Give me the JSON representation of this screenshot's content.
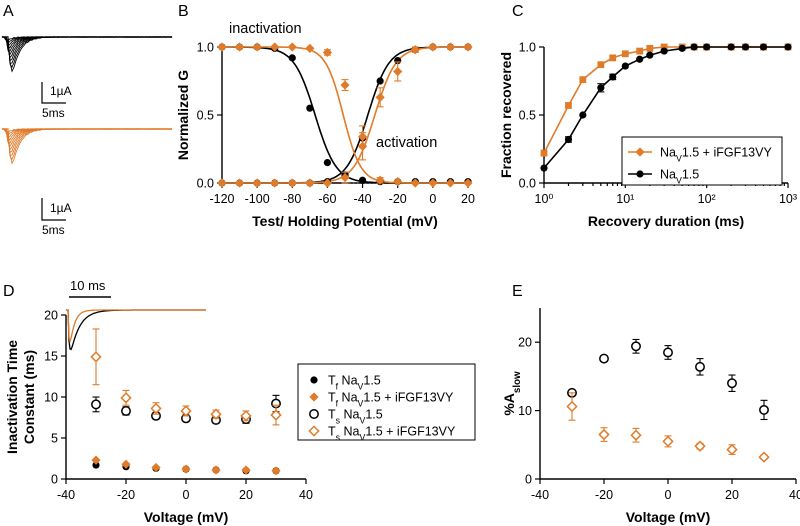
{
  "panel_labels": [
    "A",
    "B",
    "C",
    "D",
    "E"
  ],
  "colors": {
    "wt": "#000000",
    "ifgf": "#E07B2A"
  },
  "panel_a": {
    "scale_current": "1µA",
    "scale_time": "5ms"
  },
  "panel_d_inset": {
    "scale_time": "10 ms"
  },
  "chart_data": [
    {
      "panel": "B",
      "type": "scatter",
      "xlabel": "Test/ Holding Potential (mV)",
      "ylabel": "Normalized G",
      "xlim": [
        -120,
        20
      ],
      "ylim": [
        0,
        1.0
      ],
      "xticks": [
        "-120",
        "-100",
        "-80",
        "-60",
        "-40",
        "-20",
        "0",
        "20"
      ],
      "yticks": [
        "0.0",
        "0.5",
        "1.0"
      ],
      "annotations": [
        "inactivation",
        "activation"
      ],
      "series": [
        {
          "color_key": "wt",
          "curve": "inactivation",
          "fit": {
            "v_half": -67,
            "k": 6
          },
          "x": [
            -120,
            -110,
            -100,
            -90,
            -80,
            -70,
            -60,
            -50,
            -40,
            -30,
            -20,
            -10,
            0,
            10,
            20
          ],
          "y": [
            1.0,
            1.0,
            1.0,
            0.99,
            0.92,
            0.55,
            0.15,
            0.05,
            0.02,
            0.01,
            0.01,
            0.01,
            0.01,
            0.01,
            0.01
          ]
        },
        {
          "color_key": "wt",
          "curve": "activation",
          "fit": {
            "v_half": -37,
            "k": 6
          },
          "x": [
            -120,
            -110,
            -100,
            -90,
            -80,
            -70,
            -60,
            -50,
            -40,
            -30,
            -20,
            -10,
            0,
            10,
            20
          ],
          "y": [
            0.0,
            0.0,
            0.0,
            0.0,
            0.0,
            0.0,
            0.01,
            0.06,
            0.33,
            0.75,
            0.9,
            0.98,
            1.0,
            1.0,
            1.0
          ]
        },
        {
          "color_key": "ifgf",
          "curve": "inactivation",
          "fit": {
            "v_half": -51,
            "k": 5
          },
          "x": [
            -120,
            -110,
            -100,
            -90,
            -80,
            -70,
            -60,
            -50,
            -40,
            -30,
            -20,
            -10,
            0,
            10,
            20
          ],
          "y": [
            1.0,
            1.0,
            1.0,
            1.0,
            1.0,
            0.99,
            0.96,
            0.72,
            0.34,
            0.02,
            0.01,
            0.0,
            0.0,
            0.0,
            0.0
          ],
          "err": [
            0,
            0,
            0,
            0,
            0,
            0,
            0.02,
            0.04,
            0.08,
            0.02,
            0,
            0,
            0,
            0,
            0
          ]
        },
        {
          "color_key": "ifgf",
          "curve": "activation",
          "fit": {
            "v_half": -33,
            "k": 6
          },
          "x": [
            -120,
            -110,
            -100,
            -90,
            -80,
            -70,
            -60,
            -50,
            -40,
            -30,
            -20,
            -10,
            0,
            10,
            20
          ],
          "y": [
            0.0,
            0.0,
            0.0,
            0.0,
            0.0,
            0.0,
            0.0,
            0.04,
            0.27,
            0.63,
            0.82,
            0.98,
            1.0,
            1.0,
            1.0
          ],
          "err": [
            0,
            0,
            0,
            0,
            0,
            0,
            0,
            0.04,
            0.1,
            0.07,
            0.07,
            0.02,
            0,
            0,
            0
          ]
        }
      ]
    },
    {
      "panel": "C",
      "type": "line",
      "xlabel": "Recovery duration (ms)",
      "ylabel": "Fraction recovered",
      "xscale": "log",
      "xlim": [
        1,
        1000
      ],
      "ylim": [
        0,
        1.0
      ],
      "xticks": [
        "10⁰",
        "10¹",
        "10²",
        "10³"
      ],
      "yticks": [
        "0.0",
        "0.5",
        "1.0"
      ],
      "legend": {
        "position": "bottom-right",
        "entries": [
          "NaV1.5 + iFGF13VY",
          "NaV1.5"
        ]
      },
      "series": [
        {
          "color_key": "ifgf",
          "marker": "square",
          "x": [
            1,
            2,
            3,
            5,
            7,
            10,
            15,
            20,
            30,
            50,
            70,
            100,
            200,
            300,
            500,
            1000
          ],
          "y": [
            0.22,
            0.57,
            0.76,
            0.87,
            0.92,
            0.95,
            0.97,
            0.99,
            1.0,
            1.0,
            1.0,
            1.0,
            1.0,
            1.0,
            1.0,
            1.0
          ]
        },
        {
          "color_key": "wt",
          "marker": "circle",
          "x": [
            1,
            2,
            3,
            5,
            7,
            10,
            15,
            20,
            30,
            50,
            70,
            100,
            200,
            300,
            500,
            1000
          ],
          "y": [
            0.11,
            0.32,
            0.5,
            0.7,
            0.78,
            0.86,
            0.91,
            0.94,
            0.97,
            0.99,
            1.0,
            1.0,
            1.0,
            1.0,
            1.0,
            1.0
          ],
          "err": [
            0,
            0.02,
            0,
            0.03,
            0.02,
            0,
            0,
            0,
            0,
            0,
            0,
            0,
            0,
            0,
            0,
            0
          ]
        }
      ]
    },
    {
      "panel": "D",
      "type": "scatter",
      "xlabel": "Voltage (mV)",
      "ylabel": "Inactivation Time Constant (ms)",
      "ylabel_lines": [
        "Inactivation Time",
        "Constant (ms)"
      ],
      "xlim": [
        -40,
        40
      ],
      "ylim": [
        0,
        20
      ],
      "xticks": [
        "-40",
        "-20",
        "0",
        "20",
        "40"
      ],
      "yticks": [
        "0",
        "5",
        "10",
        "15",
        "20"
      ],
      "legend": {
        "position": "right",
        "entries": [
          {
            "prefix": "T",
            "sub": "f",
            "rest": " Na",
            "sub2": "V",
            "tail": "1.5"
          },
          {
            "prefix": "T",
            "sub": "f",
            "rest": " Na",
            "sub2": "V",
            "tail": "1.5 + iFGF13VY"
          },
          {
            "prefix": "T",
            "sub": "s",
            "rest": " Na",
            "sub2": "V",
            "tail": "1.5"
          },
          {
            "prefix": "T",
            "sub": "s",
            "rest": " Na",
            "sub2": "V",
            "tail": "1.5 + iFGF13VY"
          }
        ]
      },
      "series": [
        {
          "name": "Tf NaV1.5",
          "color_key": "wt",
          "marker": "circle-filled",
          "x": [
            -30,
            -20,
            -10,
            0,
            10,
            20,
            30
          ],
          "y": [
            1.7,
            1.5,
            1.3,
            1.2,
            1.1,
            1.0,
            1.0
          ]
        },
        {
          "name": "Tf NaV1.5 + iFGF13VY",
          "color_key": "ifgf",
          "marker": "diamond-filled",
          "x": [
            -30,
            -20,
            -10,
            0,
            10,
            20,
            30
          ],
          "y": [
            2.3,
            1.8,
            1.4,
            1.2,
            1.1,
            1.1,
            1.0
          ]
        },
        {
          "name": "Ts NaV1.5",
          "color_key": "wt",
          "marker": "circle-open",
          "x": [
            -30,
            -20,
            -10,
            0,
            10,
            20,
            30
          ],
          "y": [
            9.1,
            8.3,
            7.7,
            7.4,
            7.2,
            7.3,
            9.2
          ],
          "err": [
            0.9,
            0.5,
            0.4,
            0.4,
            0.4,
            0.5,
            1.0
          ]
        },
        {
          "name": "Ts NaV1.5 + iFGF13VY",
          "color_key": "ifgf",
          "marker": "diamond-open",
          "x": [
            -30,
            -20,
            -10,
            0,
            10,
            20,
            30
          ],
          "y": [
            14.9,
            9.9,
            8.6,
            8.3,
            7.9,
            7.7,
            7.8
          ],
          "err": [
            3.4,
            0.9,
            0.7,
            0.6,
            0.5,
            0.6,
            1.2
          ]
        }
      ]
    },
    {
      "panel": "E",
      "type": "scatter",
      "xlabel": "Voltage (mV)",
      "ylabel": "%A_slow",
      "ylabel_main": "%A",
      "ylabel_sub": "slow",
      "xlim": [
        -40,
        40
      ],
      "ylim": [
        0,
        25
      ],
      "xticks": [
        "-40",
        "-20",
        "0",
        "20",
        "40"
      ],
      "yticks": [
        "0",
        "10",
        "20"
      ],
      "series": [
        {
          "color_key": "wt",
          "marker": "circle-open",
          "x": [
            -30,
            -20,
            -10,
            0,
            10,
            20,
            30
          ],
          "y": [
            12.6,
            17.6,
            19.4,
            18.5,
            16.4,
            14.0,
            10.1
          ],
          "err": [
            0,
            0,
            1.0,
            1.0,
            1.2,
            1.2,
            1.4
          ]
        },
        {
          "color_key": "ifgf",
          "marker": "diamond-open",
          "x": [
            -30,
            -20,
            -10,
            0,
            10,
            20,
            30
          ],
          "y": [
            10.6,
            6.5,
            6.4,
            5.5,
            4.8,
            4.3,
            3.2
          ],
          "err": [
            2.0,
            1.0,
            1.0,
            0.8,
            0.4,
            0.7,
            0.3
          ]
        }
      ]
    }
  ]
}
